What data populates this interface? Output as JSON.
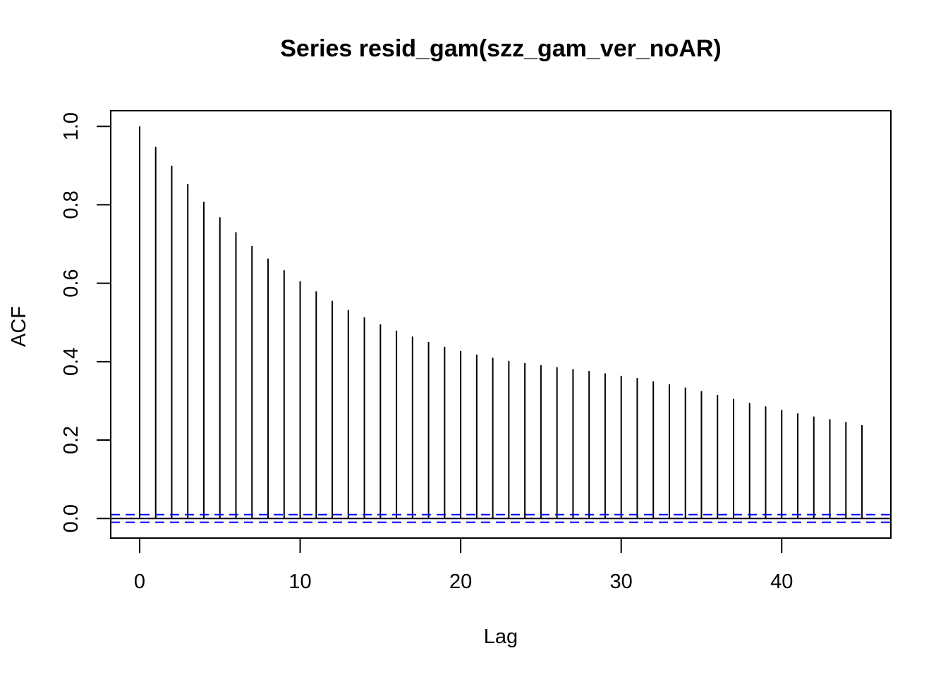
{
  "chart_data": {
    "type": "bar",
    "subtype": "acf-stem",
    "title": "Series  resid_gam(szz_gam_ver_noAR)",
    "xlabel": "Lag",
    "ylabel": "ACF",
    "xlim": [
      -1.8,
      46.8
    ],
    "ylim": [
      -0.05,
      1.04
    ],
    "x_ticks": [
      0,
      10,
      20,
      30,
      40
    ],
    "x_tick_labels": [
      "0",
      "10",
      "20",
      "30",
      "40"
    ],
    "y_ticks": [
      0.0,
      0.2,
      0.4,
      0.6,
      0.8,
      1.0
    ],
    "y_tick_labels": [
      "0.0",
      "0.2",
      "0.4",
      "0.6",
      "0.8",
      "1.0"
    ],
    "lags": [
      0,
      1,
      2,
      3,
      4,
      5,
      6,
      7,
      8,
      9,
      10,
      11,
      12,
      13,
      14,
      15,
      16,
      17,
      18,
      19,
      20,
      21,
      22,
      23,
      24,
      25,
      26,
      27,
      28,
      29,
      30,
      31,
      32,
      33,
      34,
      35,
      36,
      37,
      38,
      39,
      40,
      41,
      42,
      43,
      44,
      45
    ],
    "values": [
      1.0,
      0.948,
      0.9,
      0.853,
      0.808,
      0.768,
      0.73,
      0.695,
      0.663,
      0.633,
      0.605,
      0.579,
      0.555,
      0.532,
      0.513,
      0.495,
      0.479,
      0.464,
      0.45,
      0.438,
      0.427,
      0.418,
      0.41,
      0.402,
      0.396,
      0.391,
      0.386,
      0.381,
      0.376,
      0.37,
      0.364,
      0.358,
      0.35,
      0.342,
      0.334,
      0.325,
      0.315,
      0.305,
      0.295,
      0.286,
      0.277,
      0.268,
      0.26,
      0.253,
      0.246,
      0.238
    ],
    "confidence_bound": 0.0098,
    "zero_line_color": "#000000",
    "bound_color": "#0000ff",
    "grid": false,
    "legend": "none"
  }
}
